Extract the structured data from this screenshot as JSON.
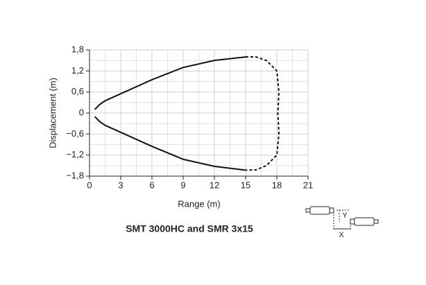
{
  "chart_data": {
    "type": "line",
    "title": "SMT 3000HC and SMR 3x15",
    "x_label": "Range (m)",
    "y_label": "Displacement (m)",
    "xlim": [
      0,
      21
    ],
    "xticks": [
      0,
      3,
      6,
      9,
      12,
      15,
      18,
      21
    ],
    "ylim": [
      -1.8,
      1.8
    ],
    "yticks": [
      {
        "value": -1.8,
        "label": "−1,8"
      },
      {
        "value": -1.2,
        "label": "−1,2"
      },
      {
        "value": -0.6,
        "label": "−0,6"
      },
      0,
      {
        "value": 0.6,
        "label": "0,6"
      },
      {
        "value": 1.2,
        "label": "1,2"
      },
      {
        "value": 1.8,
        "label": "1,8"
      }
    ],
    "x_minor_ticks": [
      1.5,
      4.5,
      7.5,
      10.5,
      13.5,
      16.5,
      19.5
    ],
    "y_minor_ticks": [
      -1.5,
      -0.9,
      -0.3,
      0.3,
      0.9,
      1.5
    ],
    "grid": true,
    "series": [
      {
        "color": "#111111",
        "dashed": false,
        "x": [
          0.5,
          1,
          1.5,
          3,
          6,
          9,
          12,
          15
        ],
        "values": [
          0.1,
          0.25,
          0.35,
          0.55,
          0.95,
          1.3,
          1.5,
          1.6
        ]
      },
      {
        "color": "#111111",
        "dashed": true,
        "x": [
          15,
          16,
          17,
          18,
          18.2,
          18.1,
          18.2,
          18,
          17,
          16,
          15
        ],
        "values": [
          1.6,
          1.6,
          1.5,
          1.2,
          0.6,
          0,
          -0.6,
          -1.2,
          -1.5,
          -1.62,
          -1.63
        ]
      },
      {
        "color": "#111111",
        "dashed": false,
        "x": [
          0.5,
          1,
          1.5,
          3,
          6,
          9,
          12,
          15
        ],
        "values": [
          -0.1,
          -0.25,
          -0.35,
          -0.55,
          -0.95,
          -1.32,
          -1.52,
          -1.63
        ]
      }
    ],
    "diagram_labels": [
      "Y",
      "X"
    ]
  }
}
